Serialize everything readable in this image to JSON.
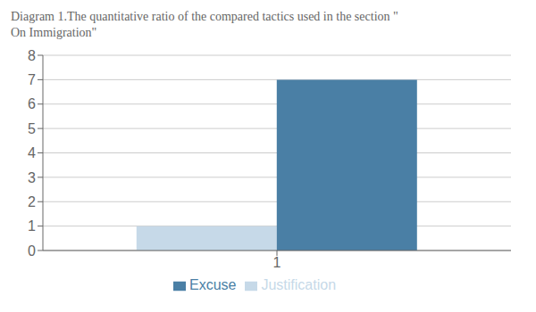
{
  "chart_data": {
    "type": "bar",
    "title": "Diagram 1.The quantitative ratio of the compared tactics used in the section \"\nOn Immigration\"",
    "categories": [
      "1"
    ],
    "series": [
      {
        "name": "Justification",
        "color": "#c6d9e8",
        "values": [
          1
        ]
      },
      {
        "name": "Excuse",
        "color": "#4a7fa5",
        "values": [
          7
        ]
      }
    ],
    "ylim": [
      0,
      8
    ],
    "yticks": [
      0,
      1,
      2,
      3,
      4,
      5,
      6,
      7,
      8
    ],
    "grid": true,
    "legend": "bottom"
  }
}
